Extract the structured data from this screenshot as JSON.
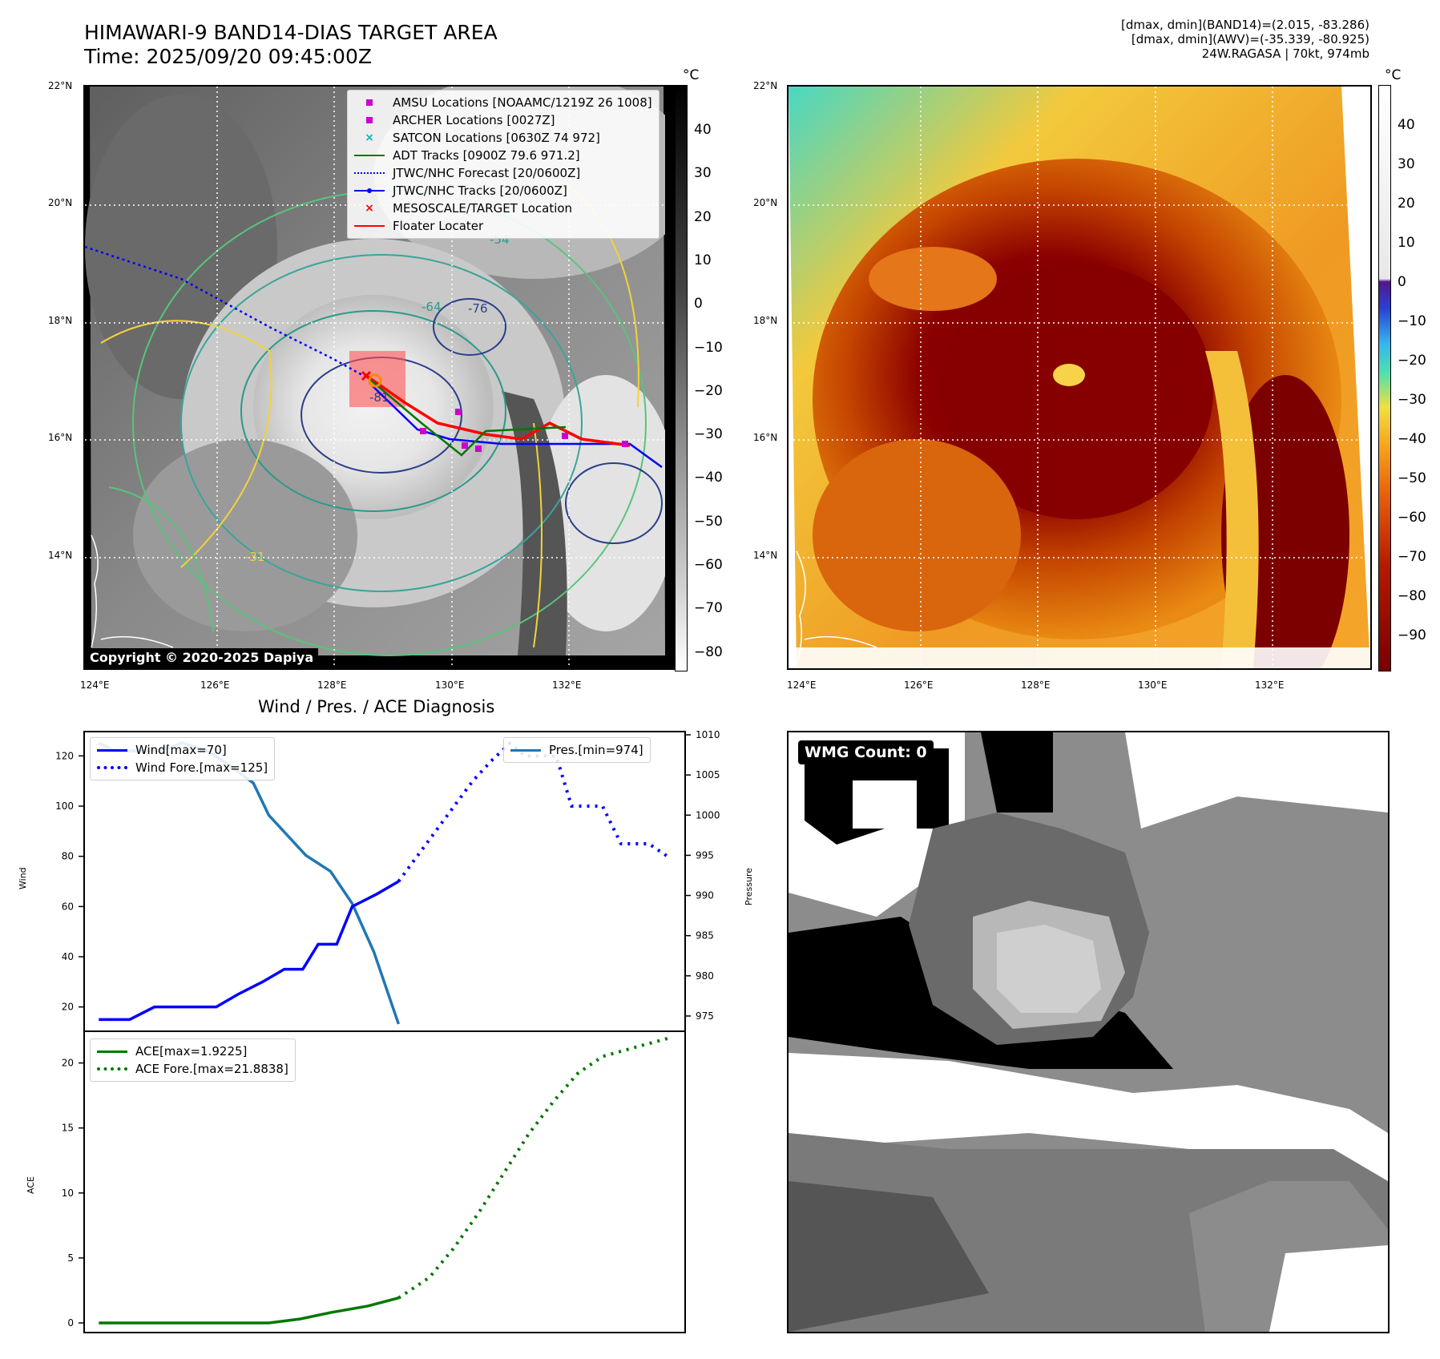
{
  "header": {
    "title_line1": "HIMAWARI-9 BAND14-DIAS TARGET AREA",
    "title_line2": "Time: 2025/09/20 09:45:00Z",
    "info_line1": "[dmax, dmin](BAND14)=(2.015, -83.286)",
    "info_line2": "[dmax, dmin](AWV)=(-35.339, -80.925)",
    "info_line3": "24W.RAGASA | 70kt, 974mb"
  },
  "map": {
    "lat_ticks": [
      "22°N",
      "20°N",
      "18°N",
      "16°N",
      "14°N"
    ],
    "lon_ticks": [
      "124°E",
      "126°E",
      "128°E",
      "130°E",
      "132°E"
    ],
    "copyright": "Copyright © 2020-2025 Dapiya",
    "contour_labels": [
      "-54",
      "-64",
      "-76",
      "-81",
      "-31"
    ]
  },
  "legend_map": [
    {
      "label": "AMSU Locations [NOAAMC/1219Z 26 1008]",
      "color": "#cc00cc",
      "marker": "square"
    },
    {
      "label": "ARCHER Locations [0027Z]",
      "color": "#cc00cc",
      "marker": "square"
    },
    {
      "label": "SATCON Locations [0630Z 74 972]",
      "color": "#00bbbb",
      "marker": "x"
    },
    {
      "label": "ADT Tracks [0900Z 79.6 971.2]",
      "color": "#007700",
      "marker": "line"
    },
    {
      "label": "JTWC/NHC Forecast [20/0600Z]",
      "color": "#0000ff",
      "marker": "dotted"
    },
    {
      "label": "JTWC/NHC Tracks [20/0600Z]",
      "color": "#0000ff",
      "marker": "line-dot"
    },
    {
      "label": "MESOSCALE/TARGET Location",
      "color": "#ff0000",
      "marker": "x"
    },
    {
      "label": "Floater Locater",
      "color": "#ff0000",
      "marker": "line"
    }
  ],
  "colorbar_ir": {
    "unit": "°C",
    "ticks": [
      "40",
      "30",
      "20",
      "10",
      "0",
      "−10",
      "−20",
      "−30",
      "−40",
      "−50",
      "−60",
      "−70",
      "−80"
    ]
  },
  "colorbar_wv": {
    "unit": "°C",
    "ticks": [
      "40",
      "30",
      "20",
      "10",
      "0",
      "−10",
      "−20",
      "−30",
      "−40",
      "−50",
      "−60",
      "−70",
      "−80",
      "−90"
    ]
  },
  "wmg": {
    "label": "WMG Count: 0"
  },
  "chart_data": [
    {
      "type": "line",
      "title": "Wind / Pres. / ACE Diagnosis",
      "ylabel": "Wind",
      "ylim": [
        10,
        130
      ],
      "yticks": [
        "120",
        "100",
        "80",
        "60",
        "40",
        "20"
      ],
      "x": [
        0,
        1,
        2,
        3,
        4,
        5,
        6,
        7,
        8,
        9,
        10,
        11
      ],
      "series": [
        {
          "name": "Wind[max=70]",
          "color": "#0000ff",
          "style": "solid",
          "values": [
            15,
            15,
            20,
            20,
            20,
            25,
            30,
            35,
            35,
            45,
            45,
            60,
            65,
            70
          ],
          "x": [
            0.5,
            1.5,
            2.3,
            3.3,
            4.3,
            5.0,
            5.8,
            6.5,
            7.1,
            7.6,
            8.2,
            8.7,
            9.5,
            10.2
          ]
        },
        {
          "name": "Wind Fore.[max=125]",
          "color": "#0000ff",
          "style": "dotted",
          "values": [
            70,
            80,
            90,
            100,
            110,
            118,
            125,
            120,
            120,
            100,
            100,
            85,
            85,
            80
          ],
          "x": [
            10.2,
            10.8,
            11.4,
            12.0,
            12.6,
            13.2,
            13.8,
            14.3,
            15.3,
            15.8,
            16.8,
            17.4,
            18.3,
            18.9
          ]
        }
      ],
      "pressure": {
        "ylabel": "Pressure",
        "ylim": [
          973,
          1010.5
        ],
        "yticks": [
          "1010",
          "1005",
          "1000",
          "995",
          "990",
          "985",
          "980",
          "975"
        ],
        "series": {
          "name": "Pres.[min=974]",
          "color": "#1f77b4",
          "values": [
            1009,
            1008,
            1008,
            1008,
            1009,
            1008,
            1006,
            1004,
            1000,
            995,
            993,
            989,
            983,
            974
          ],
          "x": [
            0.5,
            1.0,
            1.5,
            2.5,
            3.2,
            4.0,
            4.8,
            5.5,
            6.0,
            7.2,
            8.0,
            8.7,
            9.4,
            10.2
          ]
        }
      }
    },
    {
      "type": "line",
      "ylabel": "ACE",
      "ylim": [
        -0.8,
        22.5
      ],
      "yticks": [
        "20",
        "15",
        "10",
        "5",
        "0"
      ],
      "series": [
        {
          "name": "ACE[max=1.9225]",
          "color": "#007700",
          "style": "solid",
          "values": [
            0,
            0,
            0,
            0,
            0,
            0.3,
            0.8,
            1.3,
            1.9225
          ],
          "x": [
            0.5,
            2.0,
            3.5,
            5.0,
            6.0,
            7.0,
            8.0,
            9.2,
            10.2
          ]
        },
        {
          "name": "ACE Fore.[max=21.8838]",
          "color": "#007700",
          "style": "dotted",
          "values": [
            1.9225,
            3.5,
            5.8,
            8.5,
            11.5,
            14.5,
            17.0,
            19.2,
            20.5,
            21.3,
            21.8838
          ],
          "x": [
            10.2,
            11.2,
            12.0,
            12.8,
            13.6,
            14.4,
            15.2,
            16.0,
            16.8,
            18.0,
            18.9
          ]
        }
      ],
      "legend": "upper left"
    }
  ]
}
